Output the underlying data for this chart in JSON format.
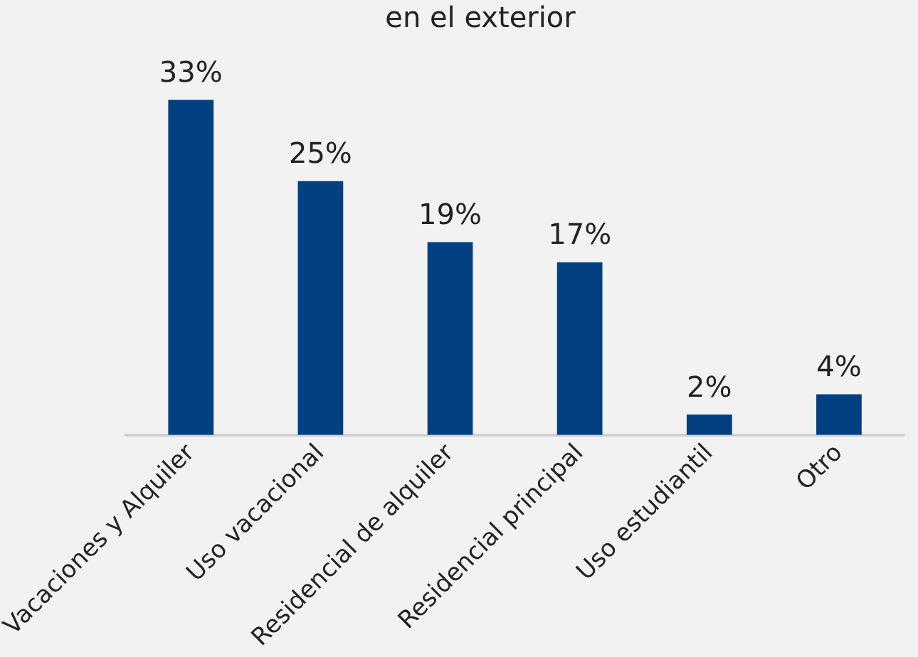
{
  "chart_data": {
    "type": "bar",
    "title": "en el exterior",
    "categories": [
      "Vacaciones y Alquiler",
      "Uso vacacional",
      "Residencial de alquiler",
      "Residencial principal",
      "Uso estudiantil",
      "Otro"
    ],
    "values": [
      33,
      25,
      19,
      17,
      2,
      4
    ],
    "value_labels": [
      "33%",
      "25%",
      "19%",
      "17%",
      "2%",
      "4%"
    ],
    "color": "#004080",
    "grid": false,
    "legend": false
  }
}
